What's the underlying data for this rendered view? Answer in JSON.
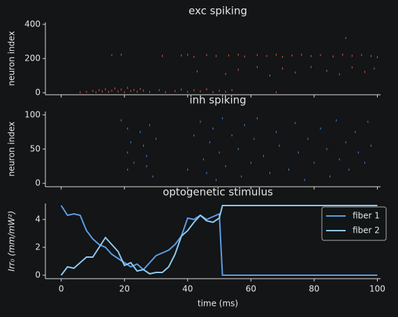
{
  "chart_data": [
    {
      "type": "raster",
      "title": "exc spiking",
      "ylabel": "neuron index",
      "color": "#e05a3a",
      "xlim": [
        -5,
        101
      ],
      "ylim": [
        -12,
        412
      ],
      "yticks": [
        0,
        200,
        400
      ],
      "x": [
        6,
        8,
        10,
        11,
        12,
        13,
        14,
        15,
        16,
        17,
        18,
        19,
        20,
        21,
        22,
        23,
        24,
        25,
        26,
        28,
        31,
        33,
        36,
        38,
        40,
        42,
        44,
        46,
        48,
        50,
        52,
        54,
        68,
        16,
        19,
        32,
        38,
        40,
        42,
        46,
        49,
        53,
        56,
        58,
        62,
        65,
        68,
        70,
        73,
        76,
        79,
        82,
        86,
        89,
        92,
        95,
        98,
        100,
        52,
        56,
        62,
        66,
        70,
        74,
        79,
        84,
        88,
        92,
        96,
        99,
        43,
        90
      ],
      "values": [
        2,
        5,
        10,
        3,
        15,
        8,
        20,
        5,
        12,
        25,
        8,
        18,
        3,
        28,
        10,
        16,
        6,
        22,
        12,
        4,
        15,
        3,
        10,
        18,
        5,
        14,
        8,
        20,
        3,
        12,
        6,
        15,
        2,
        220,
        222,
        215,
        218,
        222,
        210,
        220,
        215,
        218,
        222,
        212,
        220,
        215,
        222,
        210,
        218,
        222,
        214,
        220,
        212,
        222,
        216,
        220,
        214,
        208,
        110,
        135,
        150,
        100,
        142,
        118,
        150,
        128,
        108,
        148,
        122,
        142,
        125,
        320
      ]
    },
    {
      "type": "raster",
      "title": "inh spiking",
      "ylabel": "neuron index",
      "color": "#3d8fe0",
      "xlim": [
        -5,
        101
      ],
      "ylim": [
        -5,
        105
      ],
      "yticks": [
        0,
        50,
        100
      ],
      "x": [
        19,
        21,
        22,
        21,
        21,
        23,
        25,
        26,
        27,
        28,
        29,
        30,
        27,
        40,
        42,
        44,
        45,
        46,
        47,
        48,
        49,
        50,
        51,
        52,
        54,
        56,
        57,
        58,
        60,
        61,
        62,
        64,
        66,
        68,
        69,
        72,
        74,
        75,
        77,
        78,
        80,
        82,
        84,
        85,
        87,
        88,
        90,
        91,
        93,
        94,
        96,
        97,
        98
      ],
      "values": [
        92,
        80,
        60,
        45,
        20,
        30,
        75,
        55,
        40,
        85,
        10,
        65,
        25,
        20,
        70,
        90,
        35,
        15,
        60,
        80,
        5,
        45,
        95,
        25,
        70,
        50,
        10,
        85,
        30,
        65,
        95,
        40,
        15,
        75,
        55,
        20,
        88,
        45,
        5,
        65,
        30,
        80,
        50,
        10,
        92,
        35,
        60,
        20,
        75,
        45,
        30,
        90,
        55
      ]
    },
    {
      "type": "line",
      "title": "optogenetic stimulus",
      "ylabel": "Irr₀ (mm/mW²)",
      "xlabel": "time (ms)",
      "xlim": [
        -5,
        101
      ],
      "ylim": [
        -0.25,
        5.15
      ],
      "yticks": [
        0,
        2,
        4
      ],
      "xticks": [
        0,
        20,
        40,
        60,
        80,
        100
      ],
      "legend": "upper right",
      "x": [
        0,
        2,
        4,
        6,
        8,
        10,
        12,
        14,
        16,
        18,
        20,
        22,
        24,
        26,
        28,
        30,
        32,
        34,
        36,
        38,
        40,
        42,
        44,
        46,
        48,
        50,
        51,
        52,
        60,
        70,
        80,
        90,
        100
      ],
      "series": [
        {
          "name": "fiber 1",
          "color": "#5d9ee6",
          "values": [
            5,
            4.3,
            4.4,
            4.3,
            3.2,
            2.6,
            2.2,
            2.0,
            1.5,
            1.2,
            0.9,
            0.6,
            0.8,
            0.4,
            0.9,
            1.4,
            1.6,
            1.8,
            2.2,
            2.8,
            4.1,
            4.0,
            4.3,
            4.0,
            4.2,
            4.4,
            0,
            0,
            0,
            0,
            0,
            0,
            0
          ]
        },
        {
          "name": "fiber 2",
          "color": "#8ecbf2",
          "values": [
            0,
            0.6,
            0.5,
            0.9,
            1.3,
            1.3,
            2.0,
            2.7,
            2.2,
            1.7,
            0.7,
            0.9,
            0.3,
            0.4,
            0.1,
            0.2,
            0.2,
            0.6,
            1.5,
            2.8,
            3.2,
            3.8,
            4.3,
            3.9,
            3.8,
            4.1,
            5,
            5,
            5,
            5,
            5,
            5,
            5
          ]
        }
      ]
    }
  ]
}
